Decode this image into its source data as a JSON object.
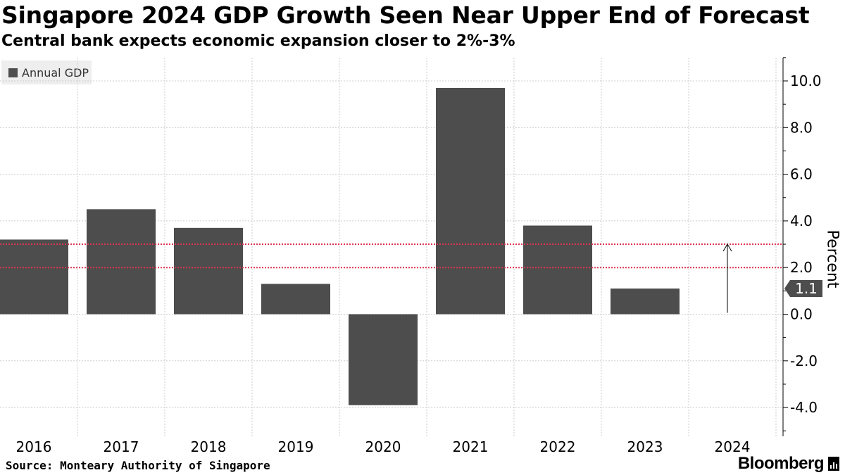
{
  "header": {
    "title": "Singapore 2024 GDP Growth Seen Near Upper End of Forecast",
    "subtitle": "Central bank expects economic expansion closer to 2%-3%"
  },
  "footer": {
    "source": "Source: Monteary Authority of Singapore",
    "brand": "Bloomberg"
  },
  "chart_data": {
    "type": "bar",
    "categories": [
      "2016",
      "2017",
      "2018",
      "2019",
      "2020",
      "2021",
      "2022",
      "2023",
      "2024"
    ],
    "series": [
      {
        "name": "Annual GDP",
        "values": [
          3.2,
          4.5,
          3.7,
          1.3,
          -3.9,
          9.7,
          3.8,
          1.1,
          null
        ],
        "color": "#4d4d4d"
      }
    ],
    "ylabel": "Percent",
    "ylim": [
      -5,
      11
    ],
    "yticks": [
      -4,
      -2,
      0,
      2,
      4,
      6,
      8,
      10
    ],
    "ytick_labels": [
      "-4.0",
      "-2.0",
      "0.0",
      "2.0",
      "4.0",
      "6.0",
      "8.0",
      "10.0"
    ],
    "yaxis_position": "right",
    "grid": true,
    "legend_position": "top-left",
    "forecast_range": {
      "low": 2,
      "high": 3,
      "color": "#e0334f",
      "category": "2024"
    },
    "last_value_label": "1.1"
  }
}
